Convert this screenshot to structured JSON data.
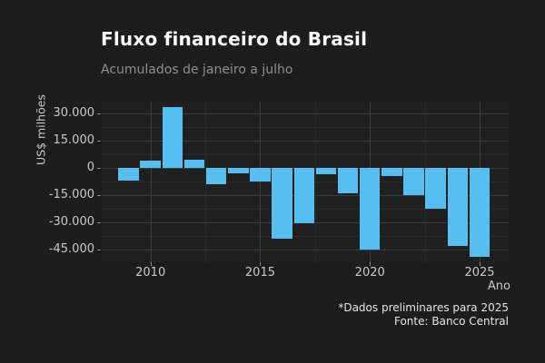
{
  "chart": {
    "title": "Fluxo financeiro do Brasil",
    "subtitle": "Acumulados de janeiro a julho",
    "y_axis_title": "US$ milhões",
    "x_axis_title": "Ano",
    "footnote_line1": "*Dados preliminares para 2025",
    "footnote_line2": "Fonte: Banco Central",
    "colors": {
      "background": "#1d1d1d",
      "panel_background": "#202020",
      "bar": "#57bfef",
      "grid_major": "#3d3d3d",
      "grid_minor": "#2a2a2a",
      "title_text": "#fafafa",
      "subtitle_text": "#8e8e8e",
      "axis_text": "#c8c8c8",
      "footnote_text": "#e4e4e4"
    }
  },
  "chart_data": {
    "type": "bar",
    "title": "Fluxo financeiro do Brasil",
    "subtitle": "Acumulados de janeiro a julho",
    "xlabel": "Ano",
    "ylabel": "US$ milhões",
    "unit": "US$ milhões",
    "x": [
      2009,
      2010,
      2011,
      2012,
      2013,
      2014,
      2015,
      2016,
      2017,
      2018,
      2019,
      2020,
      2021,
      2022,
      2023,
      2024,
      2025
    ],
    "values": [
      -7000,
      3700,
      33400,
      4300,
      -8900,
      -2900,
      -7700,
      -38800,
      -30500,
      -3600,
      -13900,
      -44900,
      -4700,
      -15200,
      -22700,
      -43000,
      -49200
    ],
    "ylim": [
      -51750,
      36250
    ],
    "y_ticks": [
      30000,
      15000,
      0,
      -15000,
      -30000,
      -45000
    ],
    "y_tick_labels": [
      "30.000",
      "15.000",
      "0",
      "-15.000",
      "-30.000",
      "-45.000"
    ],
    "x_ticks": [
      2010,
      2015,
      2020,
      2025
    ],
    "x_tick_labels": [
      "2010",
      "2015",
      "2020",
      "2025"
    ],
    "grid": true,
    "legend": false,
    "annotations": [
      "*Dados preliminares para 2025",
      "Fonte: Banco Central"
    ]
  }
}
